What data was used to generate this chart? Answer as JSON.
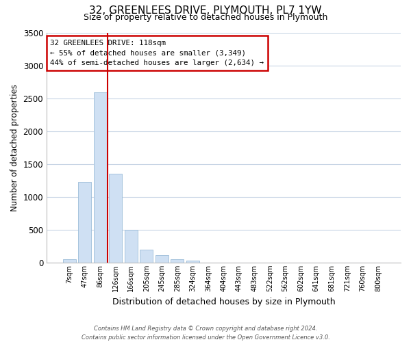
{
  "title": "32, GREENLEES DRIVE, PLYMOUTH, PL7 1YW",
  "subtitle": "Size of property relative to detached houses in Plymouth",
  "xlabel": "Distribution of detached houses by size in Plymouth",
  "ylabel": "Number of detached properties",
  "bar_labels": [
    "7sqm",
    "47sqm",
    "86sqm",
    "126sqm",
    "166sqm",
    "205sqm",
    "245sqm",
    "285sqm",
    "324sqm",
    "364sqm",
    "404sqm",
    "443sqm",
    "483sqm",
    "522sqm",
    "562sqm",
    "602sqm",
    "641sqm",
    "681sqm",
    "721sqm",
    "760sqm",
    "800sqm"
  ],
  "bar_values": [
    50,
    1230,
    2590,
    1350,
    500,
    200,
    110,
    50,
    30,
    0,
    0,
    0,
    0,
    0,
    0,
    0,
    0,
    0,
    0,
    0,
    0
  ],
  "bar_color": "#cfe0f3",
  "bar_edgecolor": "#9bbcd8",
  "vline_color": "#cc0000",
  "annotation_line1": "32 GREENLEES DRIVE: 118sqm",
  "annotation_line2": "← 55% of detached houses are smaller (3,349)",
  "annotation_line3": "44% of semi-detached houses are larger (2,634) →",
  "annotation_box_edgecolor": "#cc0000",
  "ylim": [
    0,
    3500
  ],
  "yticks": [
    0,
    500,
    1000,
    1500,
    2000,
    2500,
    3000,
    3500
  ],
  "footnote_line1": "Contains HM Land Registry data © Crown copyright and database right 2024.",
  "footnote_line2": "Contains public sector information licensed under the Open Government Licence v3.0.",
  "background_color": "#ffffff",
  "grid_color": "#c8d5e5"
}
